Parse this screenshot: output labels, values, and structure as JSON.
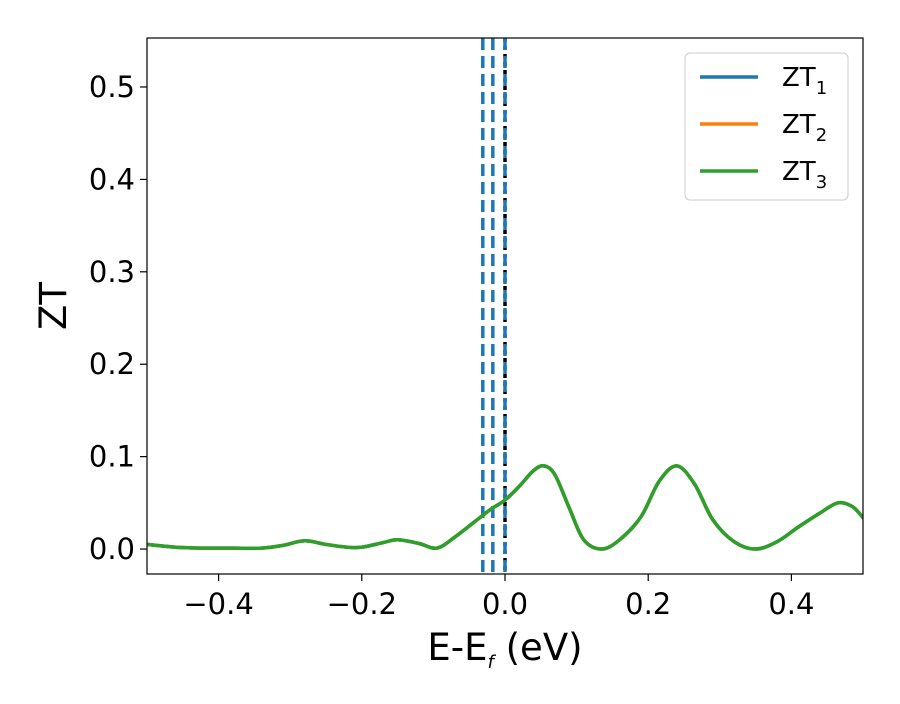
{
  "chart_data": {
    "type": "line",
    "title": "",
    "xlabel": "E-E",
    "xlabel_sub": "f",
    "xlabel_suffix": " (eV)",
    "ylabel": "ZT",
    "xlim": [
      -0.5,
      0.5
    ],
    "ylim": [
      -0.027,
      0.553
    ],
    "xticks": [
      -0.4,
      -0.2,
      0.0,
      0.2,
      0.4
    ],
    "xtick_labels": [
      "−0.4",
      "−0.2",
      "0.0",
      "0.2",
      "0.4"
    ],
    "yticks": [
      0.0,
      0.1,
      0.2,
      0.3,
      0.4,
      0.5
    ],
    "ytick_labels": [
      "0.0",
      "0.1",
      "0.2",
      "0.3",
      "0.4",
      "0.5"
    ],
    "grid": false,
    "legend_position": "top-right",
    "vlines": [
      {
        "x": -0.031,
        "color": "#1f77b4",
        "style": "dashed"
      },
      {
        "x": -0.017,
        "color": "#1f77b4",
        "style": "dashed"
      },
      {
        "x": 0.0,
        "color": "#000000",
        "style": "dotted"
      },
      {
        "x": 0.0,
        "color": "#1f77b4",
        "style": "dashed"
      }
    ],
    "x": [
      -0.5,
      -0.46,
      -0.42,
      -0.38,
      -0.34,
      -0.31,
      -0.28,
      -0.25,
      -0.22,
      -0.2,
      -0.17,
      -0.15,
      -0.12,
      -0.095,
      -0.07,
      -0.04,
      -0.02,
      0.0,
      0.02,
      0.04,
      0.055,
      0.07,
      0.09,
      0.11,
      0.135,
      0.16,
      0.19,
      0.215,
      0.24,
      0.265,
      0.29,
      0.32,
      0.35,
      0.38,
      0.41,
      0.44,
      0.465,
      0.485,
      0.5
    ],
    "series": [
      {
        "name": "ZT",
        "sub": "1",
        "color": "#1f77b4",
        "values": [
          0.005,
          0.002,
          0.001,
          0.001,
          0.001,
          0.004,
          0.009,
          0.005,
          0.002,
          0.002,
          0.007,
          0.01,
          0.006,
          0.001,
          0.013,
          0.031,
          0.043,
          0.053,
          0.068,
          0.085,
          0.09,
          0.08,
          0.044,
          0.01,
          0.0,
          0.01,
          0.035,
          0.073,
          0.09,
          0.07,
          0.032,
          0.008,
          0.0,
          0.008,
          0.024,
          0.039,
          0.05,
          0.046,
          0.034
        ]
      },
      {
        "name": "ZT",
        "sub": "2",
        "color": "#ff7f0e",
        "values": [
          0.005,
          0.002,
          0.001,
          0.001,
          0.001,
          0.004,
          0.009,
          0.005,
          0.002,
          0.002,
          0.007,
          0.01,
          0.006,
          0.001,
          0.013,
          0.031,
          0.043,
          0.053,
          0.068,
          0.085,
          0.09,
          0.08,
          0.044,
          0.01,
          0.0,
          0.01,
          0.035,
          0.073,
          0.09,
          0.07,
          0.032,
          0.008,
          0.0,
          0.008,
          0.024,
          0.039,
          0.05,
          0.046,
          0.034
        ]
      },
      {
        "name": "ZT",
        "sub": "3",
        "color": "#2ca02c",
        "values": [
          0.005,
          0.002,
          0.001,
          0.001,
          0.001,
          0.004,
          0.009,
          0.005,
          0.002,
          0.002,
          0.007,
          0.01,
          0.006,
          0.001,
          0.013,
          0.031,
          0.043,
          0.053,
          0.068,
          0.085,
          0.09,
          0.08,
          0.044,
          0.01,
          0.0,
          0.01,
          0.035,
          0.073,
          0.09,
          0.07,
          0.032,
          0.008,
          0.0,
          0.008,
          0.024,
          0.039,
          0.05,
          0.046,
          0.034
        ]
      }
    ]
  }
}
